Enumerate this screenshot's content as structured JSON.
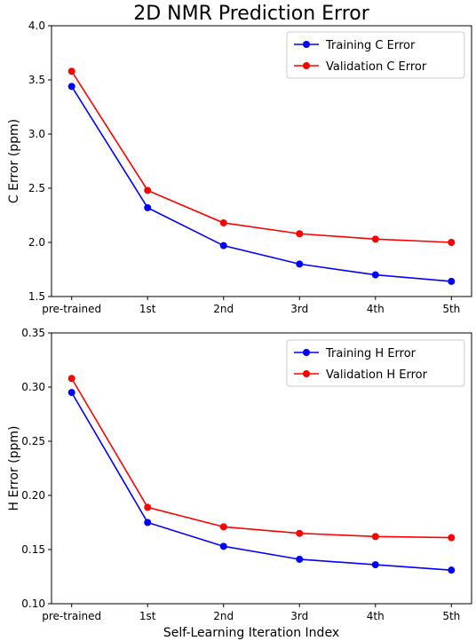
{
  "figure": {
    "title": "2D NMR Prediction Error",
    "xlabel": "Self-Learning Iteration Index"
  },
  "chart_data": [
    {
      "type": "line",
      "categories": [
        "pre-trained",
        "1st",
        "2nd",
        "3rd",
        "4th",
        "5th"
      ],
      "ylabel": "C Error (ppm)",
      "ylim": [
        1.5,
        4.0
      ],
      "yticks": [
        "1.5",
        "2.0",
        "2.5",
        "3.0",
        "3.5",
        "4.0"
      ],
      "grid": false,
      "legend": "top-right",
      "series": [
        {
          "name": "Training C Error",
          "color": "#0000ff",
          "values": [
            3.44,
            2.32,
            1.97,
            1.8,
            1.7,
            1.64
          ]
        },
        {
          "name": "Validation C Error",
          "color": "#ff0000",
          "values": [
            3.58,
            2.48,
            2.18,
            2.08,
            2.03,
            2.0
          ]
        }
      ]
    },
    {
      "type": "line",
      "categories": [
        "pre-trained",
        "1st",
        "2nd",
        "3rd",
        "4th",
        "5th"
      ],
      "ylabel": "H Error (ppm)",
      "ylim": [
        0.1,
        0.35
      ],
      "yticks": [
        "0.10",
        "0.15",
        "0.20",
        "0.25",
        "0.30",
        "0.35"
      ],
      "grid": false,
      "legend": "top-right",
      "series": [
        {
          "name": "Training H Error",
          "color": "#0000ff",
          "values": [
            0.295,
            0.175,
            0.153,
            0.141,
            0.136,
            0.131
          ]
        },
        {
          "name": "Validation H Error",
          "color": "#ff0000",
          "values": [
            0.308,
            0.189,
            0.171,
            0.165,
            0.162,
            0.161
          ]
        }
      ]
    }
  ]
}
